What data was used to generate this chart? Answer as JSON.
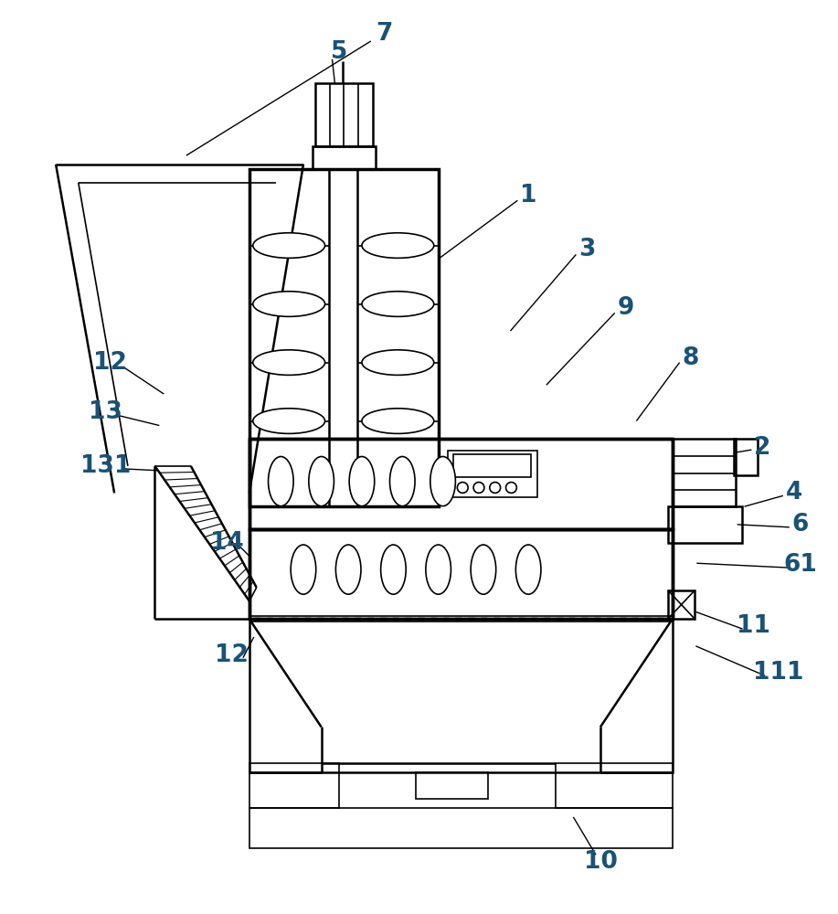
{
  "bg_color": "#ffffff",
  "lw_thin": 1.2,
  "lw_med": 1.8,
  "lw_thick": 2.5,
  "label_color": "#1a5276",
  "label_fs": 19,
  "fig_w": 9.17,
  "fig_h": 10.0
}
